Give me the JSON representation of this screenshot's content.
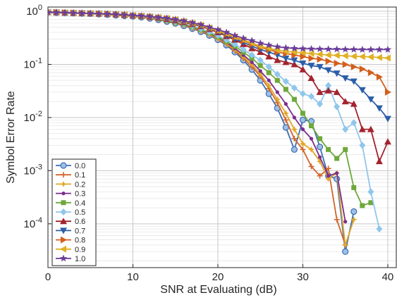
{
  "chart_data": {
    "type": "line",
    "xlabel": "SNR at Evaluating (dB)",
    "ylabel": "Symbol Error Rate",
    "xlim": [
      0,
      41
    ],
    "ylim": [
      1.5e-05,
      1.2
    ],
    "yscale": "log",
    "grid": true,
    "minor_grid": true,
    "legend_position": "lower-left",
    "x_ticks": [
      {
        "value": 0,
        "label": "0"
      },
      {
        "value": 10,
        "label": "10"
      },
      {
        "value": 20,
        "label": "20"
      },
      {
        "value": 30,
        "label": "30"
      },
      {
        "value": 40,
        "label": "40"
      }
    ],
    "y_ticks": [
      {
        "value": 1,
        "base": "10",
        "exp": "0"
      },
      {
        "value": 0.1,
        "base": "10",
        "exp": "-1"
      },
      {
        "value": 0.01,
        "base": "10",
        "exp": "-2"
      },
      {
        "value": 0.001,
        "base": "10",
        "exp": "-3"
      },
      {
        "value": 0.0001,
        "base": "10",
        "exp": "-4"
      }
    ],
    "series": [
      {
        "name": "0.0",
        "color": "#3a6fb5",
        "marker": "circle",
        "x": [
          0,
          1,
          2,
          3,
          4,
          5,
          6,
          7,
          8,
          9,
          10,
          11,
          12,
          13,
          14,
          15,
          16,
          17,
          18,
          19,
          20,
          21,
          22,
          23,
          24,
          25,
          26,
          27,
          28,
          29,
          30,
          31,
          32,
          33,
          34,
          35,
          36
        ],
        "y": [
          0.95,
          0.94,
          0.93,
          0.92,
          0.91,
          0.9,
          0.88,
          0.86,
          0.84,
          0.82,
          0.8,
          0.77,
          0.73,
          0.69,
          0.64,
          0.59,
          0.53,
          0.47,
          0.41,
          0.35,
          0.29,
          0.23,
          0.17,
          0.12,
          0.08,
          0.05,
          0.028,
          0.015,
          0.0065,
          0.0025,
          0.009,
          0.0085,
          0.0028,
          0.0008,
          0.0007,
          3e-05,
          0.00017
        ]
      },
      {
        "name": "0.1",
        "color": "#d1652b",
        "marker": "plus",
        "x": [
          0,
          1,
          2,
          3,
          4,
          5,
          6,
          7,
          8,
          9,
          10,
          11,
          12,
          13,
          14,
          15,
          16,
          17,
          18,
          19,
          20,
          21,
          22,
          23,
          24,
          25,
          26,
          27,
          28,
          29,
          30,
          31,
          32,
          33,
          34,
          35
        ],
        "y": [
          0.96,
          0.95,
          0.94,
          0.93,
          0.92,
          0.91,
          0.89,
          0.87,
          0.85,
          0.83,
          0.81,
          0.78,
          0.74,
          0.7,
          0.65,
          0.6,
          0.54,
          0.48,
          0.42,
          0.36,
          0.3,
          0.24,
          0.18,
          0.13,
          0.09,
          0.06,
          0.035,
          0.019,
          0.009,
          0.004,
          0.0025,
          0.0012,
          0.0008,
          0.0011,
          0.00012,
          4e-05
        ]
      },
      {
        "name": "0.2",
        "color": "#e0a828",
        "marker": "star",
        "x": [
          0,
          1,
          2,
          3,
          4,
          5,
          6,
          7,
          8,
          9,
          10,
          11,
          12,
          13,
          14,
          15,
          16,
          17,
          18,
          19,
          20,
          21,
          22,
          23,
          24,
          25,
          26,
          27,
          28,
          29,
          30,
          31,
          32,
          33,
          34,
          35,
          36
        ],
        "y": [
          0.96,
          0.95,
          0.94,
          0.93,
          0.92,
          0.91,
          0.89,
          0.87,
          0.85,
          0.83,
          0.81,
          0.78,
          0.74,
          0.7,
          0.65,
          0.6,
          0.55,
          0.49,
          0.43,
          0.37,
          0.31,
          0.25,
          0.19,
          0.14,
          0.1,
          0.065,
          0.04,
          0.022,
          0.012,
          0.006,
          0.0032,
          0.0025,
          0.0015,
          0.0007,
          0.0009,
          4e-05,
          0.00012
        ]
      },
      {
        "name": "0.3",
        "color": "#7b2d8e",
        "marker": "dot",
        "x": [
          0,
          1,
          2,
          3,
          4,
          5,
          6,
          7,
          8,
          9,
          10,
          11,
          12,
          13,
          14,
          15,
          16,
          17,
          18,
          19,
          20,
          21,
          22,
          23,
          24,
          25,
          26,
          27,
          28,
          29,
          30,
          31,
          32,
          33,
          34,
          35
        ],
        "y": [
          0.96,
          0.95,
          0.94,
          0.93,
          0.92,
          0.91,
          0.9,
          0.88,
          0.86,
          0.84,
          0.82,
          0.79,
          0.75,
          0.71,
          0.66,
          0.61,
          0.56,
          0.5,
          0.44,
          0.38,
          0.32,
          0.26,
          0.2,
          0.15,
          0.11,
          0.075,
          0.05,
          0.03,
          0.018,
          0.01,
          0.006,
          0.004,
          0.0018,
          0.0008,
          0.0009,
          0.00011
        ]
      },
      {
        "name": "0.4",
        "color": "#6ea83a",
        "marker": "square",
        "x": [
          0,
          1,
          2,
          3,
          4,
          5,
          6,
          7,
          8,
          9,
          10,
          11,
          12,
          13,
          14,
          15,
          16,
          17,
          18,
          19,
          20,
          21,
          22,
          23,
          24,
          25,
          26,
          27,
          28,
          29,
          30,
          31,
          32,
          33,
          34,
          35,
          36,
          37,
          38
        ],
        "y": [
          0.96,
          0.95,
          0.94,
          0.93,
          0.92,
          0.91,
          0.9,
          0.88,
          0.86,
          0.84,
          0.82,
          0.79,
          0.76,
          0.72,
          0.67,
          0.62,
          0.57,
          0.51,
          0.45,
          0.39,
          0.33,
          0.27,
          0.22,
          0.17,
          0.13,
          0.095,
          0.07,
          0.05,
          0.034,
          0.022,
          0.012,
          0.007,
          0.004,
          0.0025,
          0.0017,
          0.0025,
          0.00048,
          0.00022,
          0.00025
        ]
      },
      {
        "name": "0.5",
        "color": "#8fc6ec",
        "marker": "diamond",
        "x": [
          0,
          1,
          2,
          3,
          4,
          5,
          6,
          7,
          8,
          9,
          10,
          11,
          12,
          13,
          14,
          15,
          16,
          17,
          18,
          19,
          20,
          21,
          22,
          23,
          24,
          25,
          26,
          27,
          28,
          29,
          30,
          31,
          32,
          33,
          34,
          35,
          36,
          37,
          38,
          39
        ],
        "y": [
          0.96,
          0.95,
          0.94,
          0.93,
          0.92,
          0.91,
          0.9,
          0.89,
          0.87,
          0.85,
          0.83,
          0.8,
          0.77,
          0.73,
          0.69,
          0.64,
          0.59,
          0.53,
          0.47,
          0.41,
          0.35,
          0.29,
          0.24,
          0.19,
          0.15,
          0.12,
          0.09,
          0.065,
          0.048,
          0.036,
          0.028,
          0.025,
          0.018,
          0.04,
          0.016,
          0.006,
          0.008,
          0.003,
          0.0004,
          8e-05
        ]
      },
      {
        "name": "0.6",
        "color": "#a3232e",
        "marker": "triangle-up",
        "x": [
          0,
          1,
          2,
          3,
          4,
          5,
          6,
          7,
          8,
          9,
          10,
          11,
          12,
          13,
          14,
          15,
          16,
          17,
          18,
          19,
          20,
          21,
          22,
          23,
          24,
          25,
          26,
          27,
          28,
          29,
          30,
          31,
          32,
          33,
          34,
          35,
          36,
          37,
          38,
          39,
          40
        ],
        "y": [
          0.96,
          0.95,
          0.94,
          0.93,
          0.92,
          0.91,
          0.9,
          0.89,
          0.87,
          0.85,
          0.83,
          0.81,
          0.78,
          0.75,
          0.71,
          0.67,
          0.62,
          0.57,
          0.52,
          0.46,
          0.4,
          0.34,
          0.29,
          0.24,
          0.2,
          0.17,
          0.14,
          0.12,
          0.11,
          0.1,
          0.08,
          0.055,
          0.03,
          0.032,
          0.03,
          0.02,
          0.018,
          0.006,
          0.006,
          0.0015,
          0.0035
        ]
      },
      {
        "name": "0.7",
        "color": "#2c5ea8",
        "marker": "triangle-down",
        "x": [
          0,
          1,
          2,
          3,
          4,
          5,
          6,
          7,
          8,
          9,
          10,
          11,
          12,
          13,
          14,
          15,
          16,
          17,
          18,
          19,
          20,
          21,
          22,
          23,
          24,
          25,
          26,
          27,
          28,
          29,
          30,
          31,
          32,
          33,
          34,
          35,
          36,
          37,
          38,
          39,
          40
        ],
        "y": [
          0.96,
          0.95,
          0.94,
          0.93,
          0.92,
          0.91,
          0.9,
          0.89,
          0.87,
          0.85,
          0.83,
          0.81,
          0.78,
          0.75,
          0.72,
          0.68,
          0.63,
          0.58,
          0.53,
          0.47,
          0.41,
          0.35,
          0.3,
          0.26,
          0.22,
          0.19,
          0.17,
          0.15,
          0.13,
          0.12,
          0.105,
          0.095,
          0.09,
          0.078,
          0.068,
          0.055,
          0.048,
          0.033,
          0.022,
          0.015,
          0.0095
        ]
      },
      {
        "name": "0.8",
        "color": "#d35f1c",
        "marker": "triangle-right",
        "x": [
          0,
          1,
          2,
          3,
          4,
          5,
          6,
          7,
          8,
          9,
          10,
          11,
          12,
          13,
          14,
          15,
          16,
          17,
          18,
          19,
          20,
          21,
          22,
          23,
          24,
          25,
          26,
          27,
          28,
          29,
          30,
          31,
          32,
          33,
          34,
          35,
          36,
          37,
          38,
          39,
          40
        ],
        "y": [
          0.96,
          0.95,
          0.94,
          0.93,
          0.92,
          0.91,
          0.9,
          0.89,
          0.87,
          0.85,
          0.83,
          0.81,
          0.79,
          0.76,
          0.73,
          0.69,
          0.64,
          0.59,
          0.54,
          0.48,
          0.42,
          0.37,
          0.32,
          0.28,
          0.24,
          0.21,
          0.19,
          0.17,
          0.16,
          0.15,
          0.14,
          0.13,
          0.125,
          0.115,
          0.105,
          0.1,
          0.09,
          0.082,
          0.07,
          0.058,
          0.03
        ]
      },
      {
        "name": "0.9",
        "color": "#e0b025",
        "marker": "triangle-left",
        "x": [
          0,
          1,
          2,
          3,
          4,
          5,
          6,
          7,
          8,
          9,
          10,
          11,
          12,
          13,
          14,
          15,
          16,
          17,
          18,
          19,
          20,
          21,
          22,
          23,
          24,
          25,
          26,
          27,
          28,
          29,
          30,
          31,
          32,
          33,
          34,
          35,
          36,
          37,
          38,
          39,
          40
        ],
        "y": [
          0.96,
          0.95,
          0.94,
          0.93,
          0.92,
          0.91,
          0.9,
          0.89,
          0.88,
          0.86,
          0.84,
          0.82,
          0.8,
          0.77,
          0.74,
          0.7,
          0.65,
          0.6,
          0.55,
          0.49,
          0.43,
          0.38,
          0.33,
          0.29,
          0.25,
          0.22,
          0.2,
          0.185,
          0.175,
          0.17,
          0.165,
          0.16,
          0.155,
          0.15,
          0.148,
          0.145,
          0.142,
          0.14,
          0.138,
          0.135,
          0.132
        ]
      },
      {
        "name": "1.0",
        "color": "#6a3d9a",
        "marker": "pentagram",
        "x": [
          0,
          1,
          2,
          3,
          4,
          5,
          6,
          7,
          8,
          9,
          10,
          11,
          12,
          13,
          14,
          15,
          16,
          17,
          18,
          19,
          20,
          21,
          22,
          23,
          24,
          25,
          26,
          27,
          28,
          29,
          30,
          31,
          32,
          33,
          34,
          35,
          36,
          37,
          38,
          39,
          40
        ],
        "y": [
          0.96,
          0.95,
          0.94,
          0.93,
          0.92,
          0.91,
          0.9,
          0.89,
          0.88,
          0.86,
          0.84,
          0.82,
          0.8,
          0.77,
          0.74,
          0.7,
          0.66,
          0.61,
          0.56,
          0.5,
          0.45,
          0.4,
          0.35,
          0.31,
          0.28,
          0.25,
          0.23,
          0.215,
          0.205,
          0.2,
          0.198,
          0.196,
          0.195,
          0.194,
          0.193,
          0.192,
          0.191,
          0.19,
          0.19,
          0.19,
          0.19
        ]
      }
    ]
  }
}
